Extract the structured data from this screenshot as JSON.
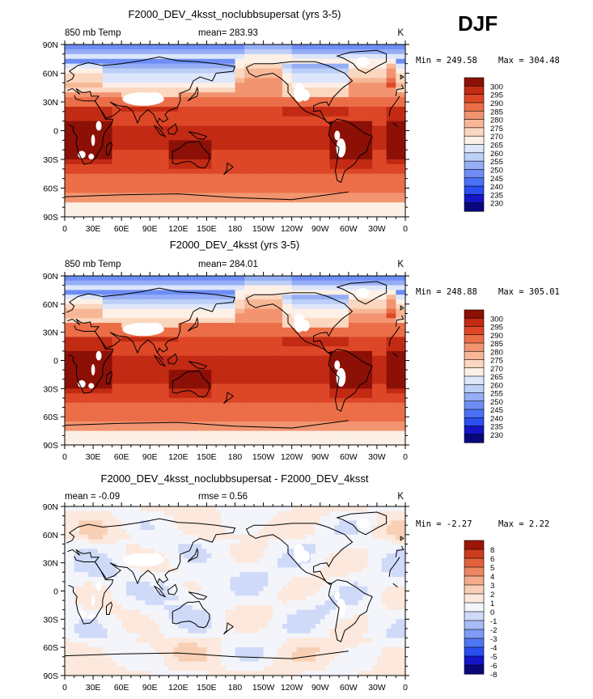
{
  "page_label": "DJF",
  "colors": {
    "abs_scale": [
      "#08087a",
      "#1414c8",
      "#2a4ef0",
      "#4a70f5",
      "#6e8ef5",
      "#96aef5",
      "#bccff7",
      "#dde6fb",
      "#fdf0e6",
      "#fbd7bf",
      "#f7b796",
      "#f29470",
      "#ec6e48",
      "#dd4727",
      "#c32a14",
      "#8c1006"
    ],
    "diff_scale": [
      "#08087a",
      "#1414c8",
      "#2a4ef0",
      "#5077f3",
      "#7e9af5",
      "#a8bcf6",
      "#cfdaf9",
      "#f3f5fb",
      "#fce8dc",
      "#f8cfb4",
      "#f3ad8c",
      "#ec8663",
      "#e2603e",
      "#cc3c1e",
      "#9c1508"
    ],
    "land_white": "#ffffff",
    "coast": "#000000"
  },
  "chart_data": [
    {
      "type": "heatmap",
      "title": "F2000_DEV_4ksst_noclubbsupersat (yrs 3-5)",
      "left_label": "850 mb Temp",
      "center_label": "mean= 283.93",
      "mean": 283.93,
      "units": "K",
      "min_label": "Min = 249.58",
      "max_label": "Max = 304.48",
      "min": 249.58,
      "max": 304.48,
      "lat_ticks": [
        "90N",
        "60N",
        "30N",
        "0",
        "30S",
        "60S",
        "90S"
      ],
      "lon_ticks": [
        "0",
        "30E",
        "60E",
        "90E",
        "120E",
        "150E",
        "180",
        "150W",
        "120W",
        "90W",
        "60W",
        "30W",
        "0"
      ],
      "colorbar_levels": [
        "300",
        "295",
        "290",
        "285",
        "280",
        "275",
        "270",
        "265",
        "260",
        "255",
        "250",
        "245",
        "240",
        "235",
        "230"
      ],
      "field": "absolute_a"
    },
    {
      "type": "heatmap",
      "title": "F2000_DEV_4ksst (yrs 3-5)",
      "left_label": "850 mb Temp",
      "center_label": "mean= 284.01",
      "mean": 284.01,
      "units": "K",
      "min_label": "Min = 248.88",
      "max_label": "Max = 305.01",
      "min": 248.88,
      "max": 305.01,
      "lat_ticks": [
        "90N",
        "60N",
        "30N",
        "0",
        "30S",
        "60S",
        "90S"
      ],
      "lon_ticks": [
        "0",
        "30E",
        "60E",
        "90E",
        "120E",
        "150E",
        "180",
        "150W",
        "120W",
        "90W",
        "60W",
        "30W",
        "0"
      ],
      "colorbar_levels": [
        "300",
        "295",
        "290",
        "285",
        "280",
        "275",
        "270",
        "265",
        "260",
        "255",
        "250",
        "245",
        "240",
        "235",
        "230"
      ],
      "field": "absolute_b"
    },
    {
      "type": "heatmap",
      "title": "F2000_DEV_4ksst_noclubbsupersat - F2000_DEV_4ksst",
      "left_label": "mean =   -0.09",
      "center_label": "rmse =     0.56",
      "mean": -0.09,
      "rmse": 0.56,
      "units": "K",
      "min_label": "Min =   -2.27",
      "max_label": "Max =     2.22",
      "min": -2.27,
      "max": 2.22,
      "lat_ticks": [
        "90N",
        "60N",
        "30N",
        "0",
        "30S",
        "60S",
        "90S"
      ],
      "lon_ticks": [
        "0",
        "30E",
        "60E",
        "90E",
        "120E",
        "150E",
        "180",
        "150W",
        "120W",
        "90W",
        "60W",
        "30W",
        "0"
      ],
      "colorbar_levels": [
        "8",
        "6",
        "5",
        "4",
        "3",
        "2",
        "1",
        "0",
        "-1",
        "-2",
        "-3",
        "-4",
        "-5",
        "-6",
        "-8"
      ],
      "field": "difference"
    }
  ]
}
